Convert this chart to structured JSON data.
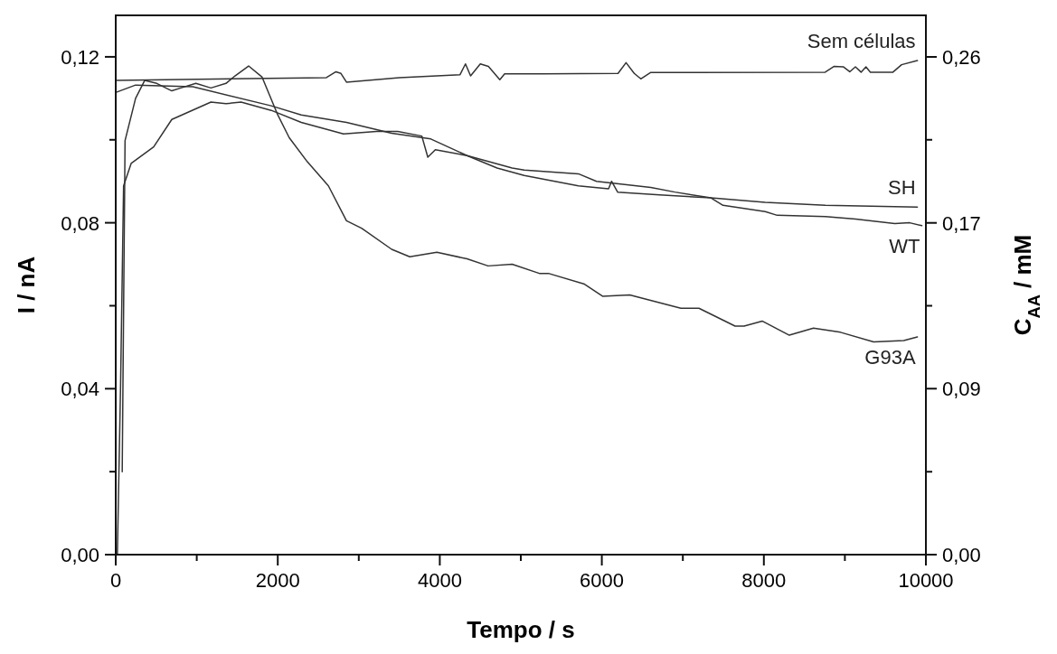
{
  "chart_data": {
    "type": "line",
    "xlabel": "Tempo / s",
    "ylabel": "I / nA",
    "y2label": "C$_{AA}$ / mM",
    "xlim": [
      0,
      10000
    ],
    "xticks": [
      0,
      {
        "value": 1000,
        "label": null
      },
      2000,
      {
        "value": 3000,
        "label": null
      },
      4000,
      {
        "value": 5000,
        "label": null
      },
      6000,
      {
        "value": 7000,
        "label": null
      },
      8000,
      {
        "value": 9000,
        "label": null
      },
      10000
    ],
    "ylim": [
      0,
      0.13
    ],
    "yticks": [
      {
        "value": 0,
        "label": "0,00"
      },
      {
        "value": 0.02,
        "label": null
      },
      {
        "value": 0.04,
        "label": "0,04"
      },
      {
        "value": 0.06,
        "label": null
      },
      {
        "value": 0.08,
        "label": "0,08"
      },
      {
        "value": 0.1,
        "label": null
      },
      {
        "value": 0.12,
        "label": "0,12"
      }
    ],
    "y2lim": [
      0,
      0.2817
    ],
    "y2ticks": [
      {
        "value": 0,
        "label": "0,00"
      },
      {
        "value": 0.0433,
        "label": null
      },
      {
        "value": 0.0867,
        "label": "0,09"
      },
      {
        "value": 0.13,
        "label": null
      },
      {
        "value": 0.1733,
        "label": "0,17"
      },
      {
        "value": 0.2167,
        "label": null
      },
      {
        "value": 0.26,
        "label": "0,26"
      }
    ],
    "grid": false,
    "legend": false,
    "marker": "none",
    "line_style": "solid",
    "series": [
      {
        "name": "Sem células",
        "color": "#333333",
        "x": [
          0,
          2600,
          2718,
          2780,
          2848,
          3500,
          4250,
          4317,
          4380,
          4500,
          4600,
          4741,
          4800,
          5265,
          6200,
          6299,
          6400,
          6481,
          6600,
          8757,
          8868,
          8980,
          9060,
          9130,
          9200,
          9260,
          9315,
          9593,
          9700,
          9895
        ],
        "values": [
          0.1143,
          0.115,
          0.1164,
          0.116,
          0.1139,
          0.115,
          0.1157,
          0.1183,
          0.1154,
          0.1183,
          0.1177,
          0.1145,
          0.1159,
          0.1159,
          0.116,
          0.1186,
          0.116,
          0.1147,
          0.1162,
          0.1163,
          0.1177,
          0.1176,
          0.1164,
          0.1176,
          0.1163,
          0.1176,
          0.1163,
          0.1163,
          0.1181,
          0.1191
        ]
      },
      {
        "name": "SH",
        "color": "#333333",
        "x": [
          20,
          59,
          97,
          190,
          468,
          692,
          1175,
          1361,
          1547,
          1919,
          2290,
          2811,
          3220,
          3480,
          3778,
          3852,
          3945,
          4336,
          4707,
          5042,
          5711,
          6083,
          6120,
          6195,
          6715,
          7347,
          8017,
          8760,
          9895
        ],
        "values": [
          0,
          0.04,
          0.0889,
          0.0943,
          0.0983,
          0.1049,
          0.1091,
          0.1087,
          0.1091,
          0.1071,
          0.1042,
          0.1014,
          0.102,
          0.102,
          0.1009,
          0.0958,
          0.0976,
          0.0962,
          0.0932,
          0.0914,
          0.0889,
          0.0882,
          0.09,
          0.0874,
          0.0867,
          0.086,
          0.0849,
          0.0842,
          0.0838
        ]
      },
      {
        "name": "WT",
        "color": "#333333",
        "x": [
          0,
          245,
          952,
          1919,
          2290,
          2848,
          3406,
          3889,
          4336,
          4893,
          5042,
          5711,
          5934,
          6158,
          6604,
          6901,
          7347,
          7496,
          8017,
          8165,
          8760,
          9132,
          9616,
          9801,
          9950
        ],
        "values": [
          0.1114,
          0.1132,
          0.1128,
          0.1082,
          0.106,
          0.1042,
          0.1016,
          0.1002,
          0.0962,
          0.0932,
          0.0927,
          0.0918,
          0.09,
          0.0895,
          0.0885,
          0.0874,
          0.086,
          0.0842,
          0.0827,
          0.0818,
          0.0815,
          0.0809,
          0.0798,
          0.08,
          0.0793
        ]
      },
      {
        "name": "G93A",
        "color": "#333333",
        "x": [
          80,
          115,
          245,
          357,
          506,
          692,
          803,
          989,
          1175,
          1361,
          1472,
          1640,
          1807,
          1993,
          2142,
          2365,
          2625,
          2848,
          3034,
          3406,
          3629,
          3964,
          4336,
          4596,
          4893,
          5228,
          5340,
          5786,
          6009,
          6344,
          6976,
          7199,
          7645,
          7756,
          7979,
          8314,
          8612,
          8946,
          9355,
          9727,
          9895
        ],
        "values": [
          0.02,
          0.0998,
          0.11,
          0.1143,
          0.1136,
          0.1118,
          0.1125,
          0.1136,
          0.1125,
          0.1136,
          0.1154,
          0.1178,
          0.1151,
          0.1063,
          0.1005,
          0.0947,
          0.0889,
          0.0805,
          0.0787,
          0.0736,
          0.0718,
          0.0729,
          0.0713,
          0.0696,
          0.07,
          0.0678,
          0.0678,
          0.0652,
          0.0623,
          0.0626,
          0.0594,
          0.0594,
          0.0551,
          0.0551,
          0.0563,
          0.0529,
          0.0546,
          0.0536,
          0.0513,
          0.0516,
          0.0525
        ]
      }
    ]
  }
}
